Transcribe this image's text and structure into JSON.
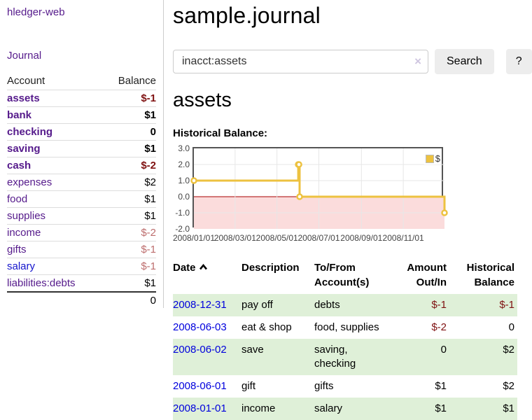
{
  "sidebar": {
    "brand": "hledger-web",
    "nav": {
      "journal": "Journal"
    },
    "accounts_table": {
      "headers": {
        "account": "Account",
        "balance": "Balance"
      },
      "rows": [
        {
          "name": "assets",
          "depth": 1,
          "bold": true,
          "balance": "$-1",
          "balance_class": "neg-dark",
          "link_class": "purple"
        },
        {
          "name": "bank",
          "depth": 2,
          "bold": true,
          "balance": "$1",
          "balance_class": "pos",
          "link_class": "purple"
        },
        {
          "name": "checking",
          "depth": 3,
          "bold": true,
          "balance": "0",
          "balance_class": "pos",
          "link_class": "purple"
        },
        {
          "name": "saving",
          "depth": 3,
          "bold": true,
          "balance": "$1",
          "balance_class": "pos",
          "link_class": "purple"
        },
        {
          "name": "cash",
          "depth": 2,
          "bold": true,
          "balance": "$-2",
          "balance_class": "neg-dark",
          "link_class": "purple"
        },
        {
          "name": "expenses",
          "depth": 1,
          "bold": false,
          "balance": "$2",
          "balance_class": "pos",
          "link_class": "purple"
        },
        {
          "name": "food",
          "depth": 2,
          "bold": false,
          "balance": "$1",
          "balance_class": "pos",
          "link_class": "purple"
        },
        {
          "name": "supplies",
          "depth": 2,
          "bold": false,
          "balance": "$1",
          "balance_class": "pos",
          "link_class": "purple"
        },
        {
          "name": "income",
          "depth": 1,
          "bold": false,
          "balance": "$-2",
          "balance_class": "neg-soft",
          "link_class": "purple"
        },
        {
          "name": "gifts",
          "depth": 2,
          "bold": false,
          "balance": "$-1",
          "balance_class": "neg-soft",
          "link_class": "purple"
        },
        {
          "name": "salary",
          "depth": 2,
          "bold": false,
          "balance": "$-1",
          "balance_class": "neg-soft",
          "link_class": "blue"
        },
        {
          "name": "liabilities:debts",
          "depth": 1,
          "bold": false,
          "balance": "$1",
          "balance_class": "pos",
          "link_class": "purple"
        }
      ],
      "total": "0"
    }
  },
  "main": {
    "title": "sample.journal",
    "search": {
      "value": "inacct:assets",
      "clear_icon": "×",
      "button": "Search",
      "help_button": "?"
    },
    "account_heading": "assets",
    "chart_label": "Historical Balance:",
    "sort_icon": "caret-up"
  },
  "chart_data": {
    "type": "line",
    "step": true,
    "title": "Historical Balance",
    "series": [
      {
        "name": "$",
        "color": "#edc240",
        "points": [
          [
            "2008-01-01",
            1
          ],
          [
            "2008-06-01",
            2
          ],
          [
            "2008-06-02",
            2
          ],
          [
            "2008-06-03",
            0
          ],
          [
            "2008-12-31",
            -1
          ]
        ]
      }
    ],
    "x_range": [
      "2008-01-01",
      "2008-12-31"
    ],
    "ylim": [
      -2,
      3
    ],
    "yticks": [
      "3.0",
      "2.0",
      "1.0",
      "0.0",
      "-1.0",
      "-2.0"
    ],
    "xticks": [
      "2008/01/01",
      "2008/03/01",
      "2008/05/01",
      "2008/07/01",
      "2008/09/01",
      "2008/11/01"
    ],
    "grid": true,
    "grid_color": "#e7e7e7",
    "negative_fill": "#fbdcdc",
    "zero_line_color": "#aa0000",
    "marker_fill": "#ffffff",
    "legend": {
      "label": "$",
      "position": "top-right"
    }
  },
  "register": {
    "headers": {
      "date": "Date",
      "description": "Description",
      "account": "To/From Account(s)",
      "amount": "Amount Out/In",
      "balance": "Historical Balance"
    },
    "rows": [
      {
        "date": "2008-12-31",
        "description": "pay off",
        "account": "debts",
        "amount": "$-1",
        "amount_class": "neg",
        "balance": "$-1",
        "balance_class": "neg"
      },
      {
        "date": "2008-06-03",
        "description": "eat & shop",
        "account": "food, supplies",
        "amount": "$-2",
        "amount_class": "neg",
        "balance": "0",
        "balance_class": "pos"
      },
      {
        "date": "2008-06-02",
        "description": "save",
        "account": "saving,\nchecking",
        "amount": "0",
        "amount_class": "pos",
        "balance": "$2",
        "balance_class": "pos"
      },
      {
        "date": "2008-06-01",
        "description": "gift",
        "account": "gifts",
        "amount": "$1",
        "amount_class": "pos",
        "balance": "$2",
        "balance_class": "pos"
      },
      {
        "date": "2008-01-01",
        "description": "income",
        "account": "salary",
        "amount": "$1",
        "amount_class": "pos",
        "balance": "$1",
        "balance_class": "pos"
      }
    ]
  }
}
